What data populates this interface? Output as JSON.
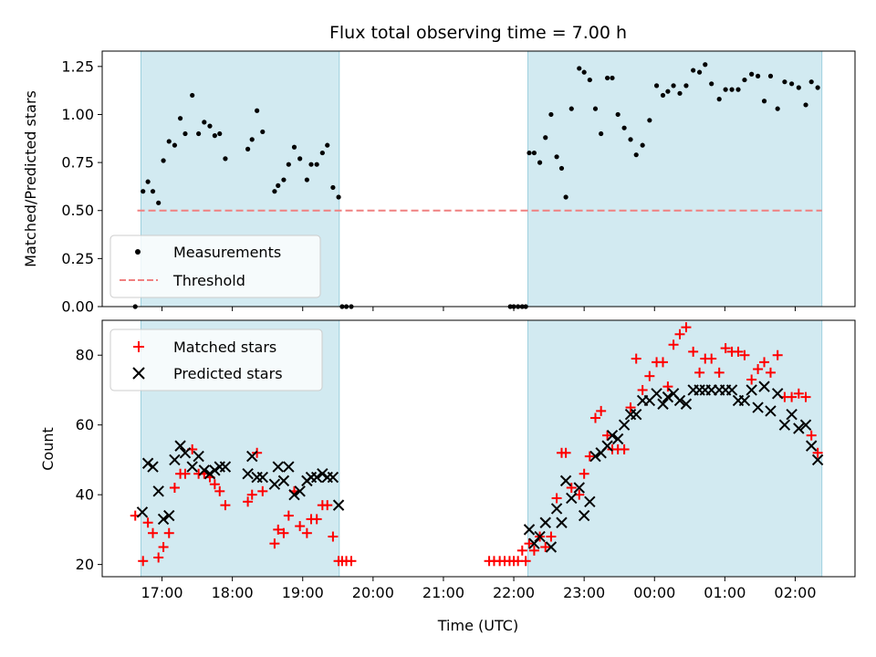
{
  "chart_data": {
    "type": "scatter",
    "title": "Flux total observing time = 7.00 h",
    "xlabel": "Time (UTC)",
    "x_unit": "hours after 17:00 UTC",
    "x_tick_labels": [
      "17:00",
      "18:00",
      "19:00",
      "20:00",
      "21:00",
      "22:00",
      "23:00",
      "00:00",
      "01:00",
      "02:00"
    ],
    "x_ticks": [
      0,
      1,
      2,
      3,
      4,
      5,
      6,
      7,
      8,
      9
    ],
    "xlim": [
      -0.85,
      9.85
    ],
    "shaded_intervals": [
      [
        -0.3,
        2.52
      ],
      [
        5.2,
        9.38
      ]
    ],
    "shade_color": "#add8e6",
    "top": {
      "ylabel": "Matched/Predicted stars",
      "ylim": [
        0,
        1.33
      ],
      "y_ticks": [
        0,
        0.25,
        0.5,
        0.75,
        1.0,
        1.25
      ],
      "y_tick_labels": [
        "0.00",
        "0.25",
        "0.50",
        "0.75",
        "1.00",
        "1.25"
      ],
      "legend_position": "lower-left",
      "threshold": {
        "name": "Threshold",
        "y": 0.5,
        "x_range": [
          -0.35,
          9.38
        ],
        "color": "#f08080"
      },
      "measurements": {
        "name": "Measurements",
        "color": "#000000",
        "x": [
          -0.38,
          -0.27,
          -0.2,
          -0.13,
          -0.05,
          0.02,
          0.1,
          0.18,
          0.26,
          0.33,
          0.43,
          0.52,
          0.6,
          0.68,
          0.75,
          0.82,
          0.9,
          1.22,
          1.28,
          1.35,
          1.43,
          1.6,
          1.65,
          1.73,
          1.8,
          1.88,
          1.96,
          2.06,
          2.12,
          2.2,
          2.28,
          2.35,
          2.43,
          2.51,
          2.56,
          2.62,
          2.69,
          4.95,
          5.0,
          5.06,
          5.12,
          5.17,
          5.22,
          5.29,
          5.37,
          5.45,
          5.53,
          5.61,
          5.68,
          5.74,
          5.82,
          5.93,
          6.0,
          6.08,
          6.16,
          6.24,
          6.33,
          6.4,
          6.48,
          6.57,
          6.66,
          6.74,
          6.83,
          6.93,
          7.03,
          7.12,
          7.19,
          7.27,
          7.36,
          7.45,
          7.55,
          7.64,
          7.72,
          7.81,
          7.92,
          8.01,
          8.1,
          8.19,
          8.28,
          8.38,
          8.47,
          8.56,
          8.65,
          8.75,
          8.85,
          8.95,
          9.05,
          9.15,
          9.23,
          9.32
        ],
        "y": [
          0,
          0.6,
          0.65,
          0.6,
          0.54,
          0.76,
          0.86,
          0.84,
          0.98,
          0.9,
          1.1,
          0.9,
          0.96,
          0.94,
          0.89,
          0.9,
          0.77,
          0.82,
          0.87,
          1.02,
          0.91,
          0.6,
          0.63,
          0.66,
          0.74,
          0.83,
          0.77,
          0.66,
          0.74,
          0.74,
          0.8,
          0.84,
          0.62,
          0.57,
          0,
          0,
          0,
          0,
          0,
          0,
          0,
          0,
          0.8,
          0.8,
          0.75,
          0.88,
          1.0,
          0.78,
          0.72,
          0.57,
          1.03,
          1.24,
          1.22,
          1.18,
          1.03,
          0.9,
          1.19,
          1.19,
          1.0,
          0.93,
          0.87,
          0.79,
          0.84,
          0.97,
          1.15,
          1.1,
          1.12,
          1.15,
          1.11,
          1.15,
          1.23,
          1.22,
          1.26,
          1.16,
          1.08,
          1.13,
          1.13,
          1.13,
          1.18,
          1.21,
          1.2,
          1.07,
          1.2,
          1.03,
          1.17,
          1.16,
          1.14,
          1.05,
          1.17,
          1.14
        ]
      }
    },
    "bottom": {
      "ylabel": "Count",
      "ylim": [
        16.5,
        90
      ],
      "y_ticks": [
        20,
        40,
        60,
        80
      ],
      "y_tick_labels": [
        "20",
        "40",
        "60",
        "80"
      ],
      "legend_position": "upper-left",
      "matched": {
        "name": "Matched stars",
        "color": "#ff0000",
        "x": [
          -0.38,
          -0.27,
          -0.2,
          -0.13,
          -0.05,
          0.02,
          0.1,
          0.18,
          0.26,
          0.33,
          0.43,
          0.52,
          0.6,
          0.68,
          0.75,
          0.82,
          0.9,
          1.22,
          1.28,
          1.35,
          1.43,
          1.6,
          1.65,
          1.73,
          1.8,
          1.88,
          1.96,
          2.06,
          2.12,
          2.2,
          2.28,
          2.35,
          2.43,
          2.51,
          2.56,
          2.62,
          2.69,
          4.65,
          4.72,
          4.8,
          4.87,
          4.94,
          5.0,
          5.06,
          5.12,
          5.17,
          5.22,
          5.29,
          5.37,
          5.45,
          5.53,
          5.61,
          5.68,
          5.74,
          5.82,
          5.93,
          6.0,
          6.08,
          6.16,
          6.24,
          6.33,
          6.4,
          6.48,
          6.57,
          6.66,
          6.74,
          6.83,
          6.93,
          7.03,
          7.12,
          7.19,
          7.27,
          7.36,
          7.45,
          7.55,
          7.64,
          7.72,
          7.81,
          7.92,
          8.01,
          8.1,
          8.19,
          8.28,
          8.38,
          8.47,
          8.56,
          8.65,
          8.75,
          8.85,
          8.95,
          9.05,
          9.15,
          9.23,
          9.32
        ],
        "y": [
          34,
          21,
          32,
          29,
          22,
          25,
          29,
          42,
          46,
          46,
          53,
          46,
          46,
          45,
          43,
          41,
          37,
          38,
          40,
          52,
          41,
          26,
          30,
          29,
          34,
          41,
          31,
          29,
          33,
          33,
          37,
          37,
          28,
          21,
          21,
          21,
          21,
          21,
          21,
          21,
          21,
          21,
          21,
          21,
          24,
          21,
          26,
          24,
          28,
          25,
          28,
          39,
          52,
          52,
          42,
          40,
          46,
          51,
          62,
          64,
          57,
          53,
          53,
          53,
          65,
          79,
          70,
          74,
          78,
          78,
          71,
          83,
          86,
          88,
          81,
          75,
          79,
          79,
          75,
          82,
          81,
          81,
          80,
          73,
          76,
          78,
          75,
          80,
          68,
          68,
          69,
          68,
          57,
          52
        ]
      },
      "predicted": {
        "name": "Predicted stars",
        "color": "#000000",
        "x": [
          -0.28,
          -0.2,
          -0.13,
          -0.05,
          0.02,
          0.1,
          0.18,
          0.26,
          0.33,
          0.43,
          0.52,
          0.6,
          0.68,
          0.75,
          0.82,
          0.9,
          1.22,
          1.28,
          1.35,
          1.43,
          1.6,
          1.65,
          1.73,
          1.8,
          1.88,
          1.96,
          2.06,
          2.12,
          2.2,
          2.28,
          2.35,
          2.43,
          2.51,
          5.22,
          5.29,
          5.37,
          5.45,
          5.53,
          5.61,
          5.68,
          5.74,
          5.82,
          5.93,
          6.0,
          6.08,
          6.16,
          6.24,
          6.33,
          6.4,
          6.48,
          6.57,
          6.66,
          6.74,
          6.83,
          6.93,
          7.03,
          7.12,
          7.19,
          7.27,
          7.36,
          7.45,
          7.55,
          7.64,
          7.72,
          7.81,
          7.92,
          8.01,
          8.1,
          8.19,
          8.28,
          8.38,
          8.47,
          8.56,
          8.65,
          8.75,
          8.85,
          8.95,
          9.05,
          9.15,
          9.23,
          9.32
        ],
        "y": [
          35,
          49,
          48,
          41,
          33,
          34,
          50,
          54,
          52,
          48,
          51,
          47,
          46,
          47,
          48,
          48,
          46,
          51,
          45,
          45,
          43,
          48,
          44,
          48,
          40,
          41,
          44,
          45,
          45,
          46,
          45,
          45,
          37,
          30,
          26,
          28,
          32,
          25,
          36,
          32,
          44,
          39,
          42,
          34,
          38,
          51,
          52,
          54,
          57,
          56,
          60,
          63,
          63,
          67,
          67,
          69,
          66,
          68,
          69,
          67,
          66,
          70,
          70,
          70,
          70,
          70,
          70,
          70,
          67,
          67,
          70,
          65,
          71,
          64,
          69,
          60,
          63,
          59,
          60,
          54,
          50
        ]
      }
    }
  }
}
